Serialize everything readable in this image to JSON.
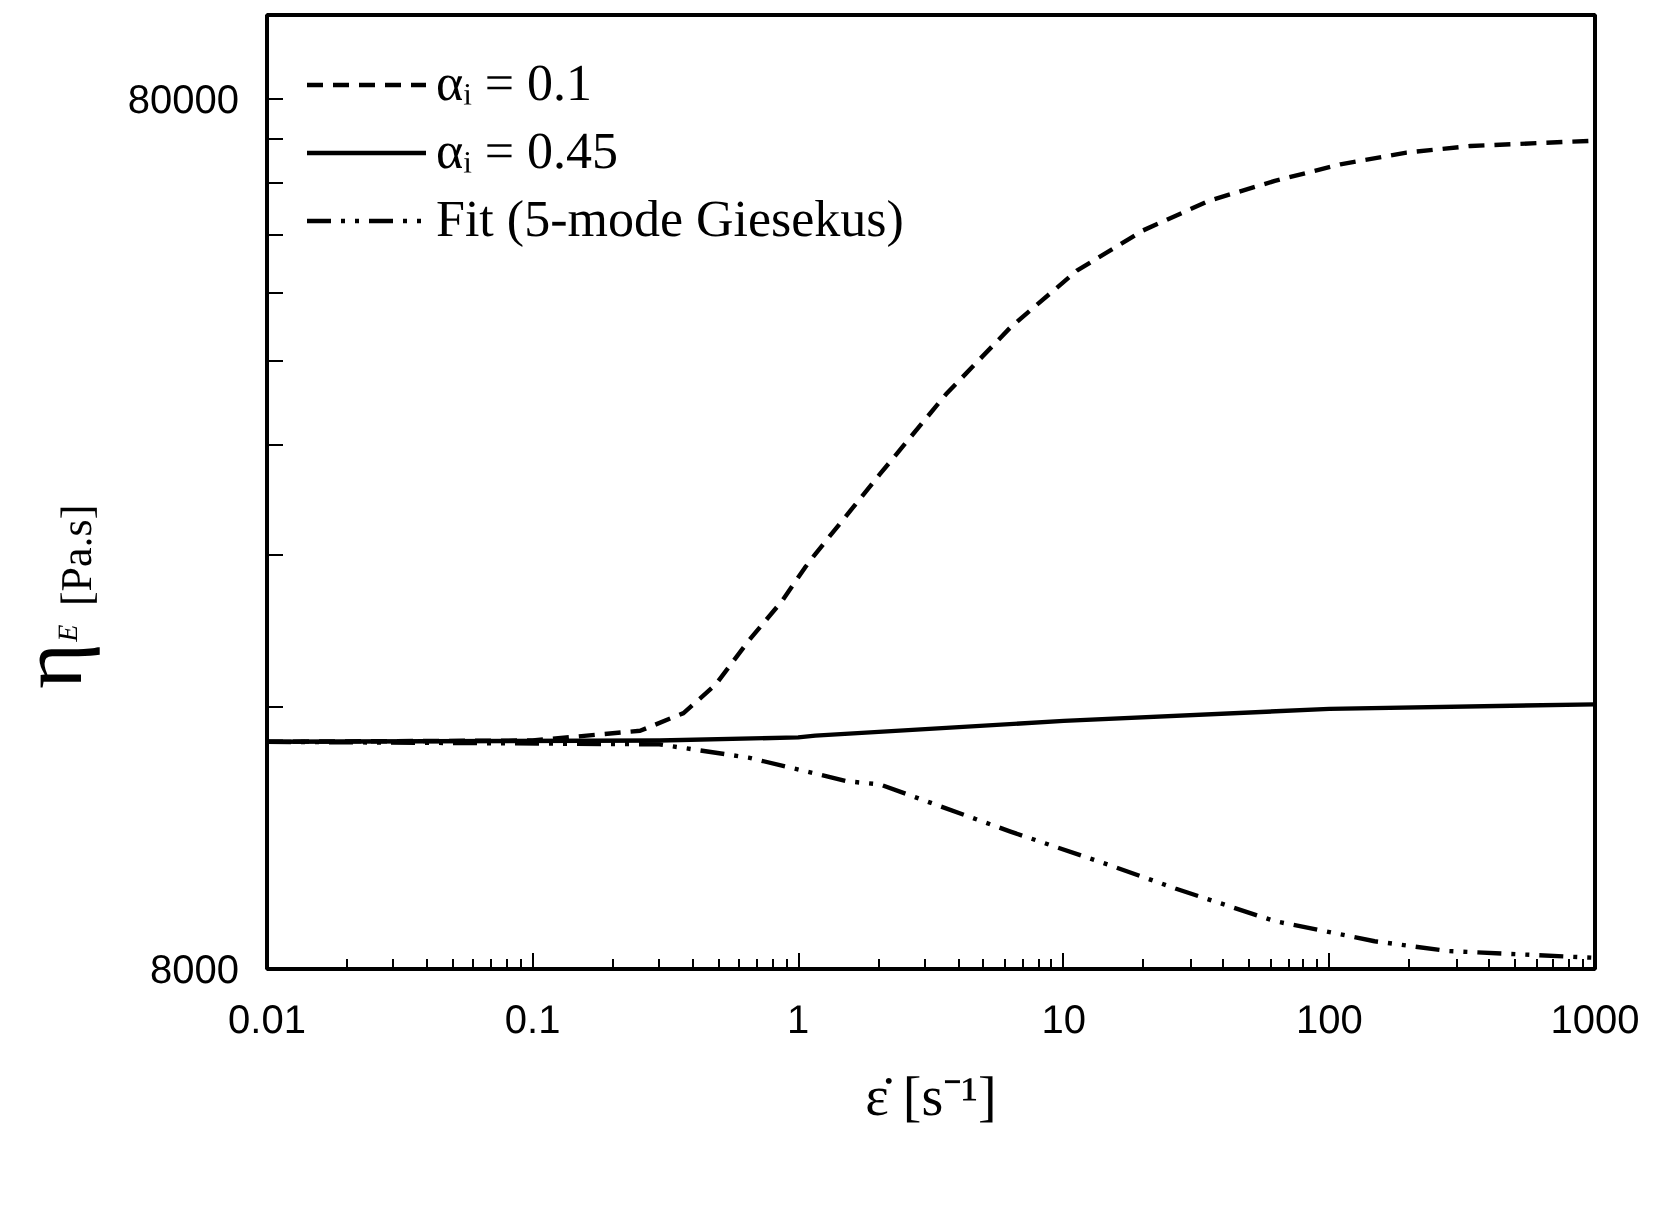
{
  "chart_data": {
    "type": "line",
    "xlabel": "ε̇ [s⁻¹]",
    "ylabel": "η$_{E}$ [Pa.s]",
    "log": "xy",
    "grid": false,
    "legend": "top left",
    "xlim": [
      0.01,
      1000
    ],
    "ylim": [
      8000,
      100000
    ],
    "xticks": [
      0.01,
      0.1,
      1,
      10,
      100,
      1000
    ],
    "yticks": [
      8000,
      {
        "value": 16000,
        "label": null
      },
      {
        "value": 24000,
        "label": null
      },
      {
        "value": 32000,
        "label": null
      },
      {
        "value": 40000,
        "label": null
      },
      {
        "value": 48000,
        "label": null
      },
      {
        "value": 56000,
        "label": null
      },
      {
        "value": 64000,
        "label": null
      },
      {
        "value": 72000,
        "label": null
      },
      80000
    ],
    "series": [
      {
        "name": "αᵢ = 0.1",
        "color": "#000000",
        "line_style": "dashed",
        "x": [
          0.01,
          0.1,
          0.254,
          0.37,
          0.49,
          0.65,
          0.87,
          1.06,
          1.16,
          2.03,
          3.6,
          6.3,
          11.2,
          19.8,
          35.2,
          62.3,
          110,
          195,
          340,
          1000
        ],
        "values": [
          14600,
          14650,
          15030,
          15750,
          17000,
          19070,
          21200,
          23150,
          24000,
          29650,
          36630,
          43740,
          50820,
          56500,
          61150,
          64450,
          67350,
          69470,
          70700,
          71700
        ]
      },
      {
        "name": "αᵢ = 0.45",
        "color": "#000000",
        "line_style": "solid",
        "x": [
          0.01,
          0.3,
          1,
          1.16,
          10,
          100,
          1000
        ],
        "values": [
          14600,
          14650,
          14770,
          14840,
          15430,
          15930,
          16120
        ]
      },
      {
        "name": "Fit (5-mode Giesekus)",
        "color": "#000000",
        "line_style": "dashdot",
        "x": [
          0.01,
          0.3,
          0.65,
          1.53,
          2.03,
          6.3,
          14.9,
          26.3,
          62.3,
          148,
          280,
          1000
        ],
        "values": [
          14600,
          14500,
          14000,
          13150,
          13040,
          11510,
          10530,
          9900,
          9080,
          8610,
          8390,
          8240
        ]
      }
    ]
  }
}
